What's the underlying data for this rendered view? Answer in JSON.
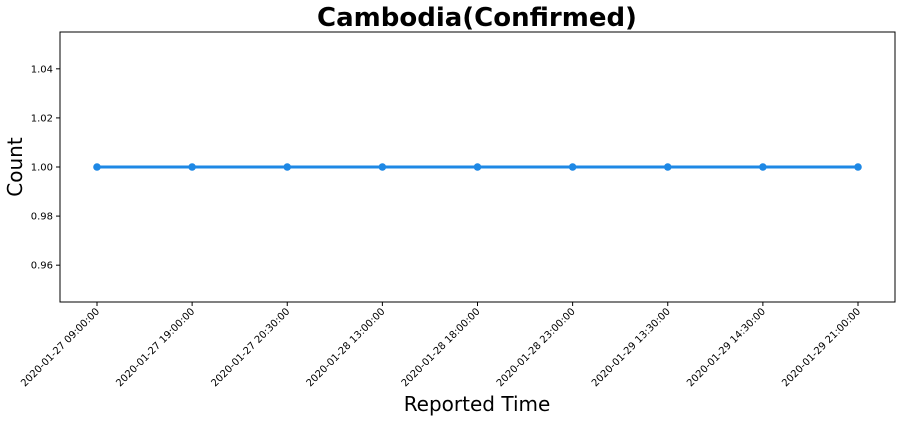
{
  "chart_data": {
    "type": "line",
    "title": "Cambodia(Confirmed)",
    "xlabel": "Reported Time",
    "ylabel": "Count",
    "categories": [
      "2020-01-27 09:00:00",
      "2020-01-27 19:00:00",
      "2020-01-27 20:30:00",
      "2020-01-28 13:00:00",
      "2020-01-28 18:00:00",
      "2020-01-28 23:00:00",
      "2020-01-29 13:30:00",
      "2020-01-29 14:30:00",
      "2020-01-29 21:00:00"
    ],
    "series": [
      {
        "values": [
          1,
          1,
          1,
          1,
          1,
          1,
          1,
          1,
          1
        ]
      }
    ],
    "ylim": [
      0.945,
      1.055
    ],
    "yticks": [
      0.96,
      0.98,
      1.0,
      1.02,
      1.04
    ],
    "ytick_labels": [
      "0.96",
      "0.98",
      "1.00",
      "1.02",
      "1.04"
    ],
    "grid": false,
    "color": "#1e88e5"
  }
}
